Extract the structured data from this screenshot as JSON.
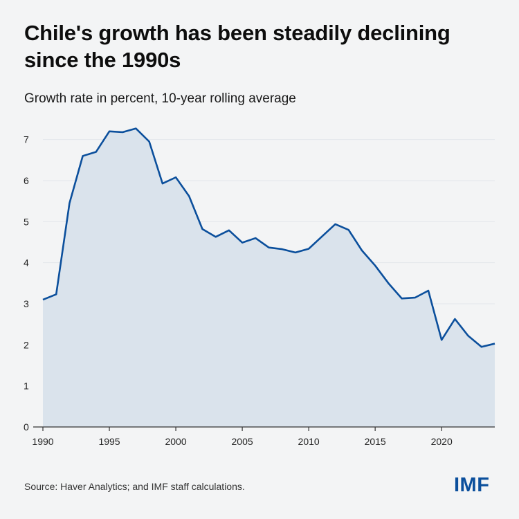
{
  "header": {
    "title": "Chile's growth has been steadily declining since the 1990s",
    "subtitle": "Growth rate in percent, 10-year rolling average"
  },
  "footer": {
    "source": "Source: Haver Analytics; and IMF staff calculations.",
    "logo_text": "IMF"
  },
  "colors": {
    "line": "#0b4f9c",
    "area": "#dae3ec",
    "grid": "#e3e6ea",
    "axis": "#333333"
  },
  "chart_data": {
    "type": "area",
    "title": "Chile's growth has been steadily declining since the 1990s",
    "subtitle": "Growth rate in percent, 10-year rolling average",
    "xlabel": "",
    "ylabel": "",
    "xlim": [
      1990,
      2024
    ],
    "ylim": [
      0,
      7.5
    ],
    "x_ticks": [
      1990,
      1995,
      2000,
      2005,
      2010,
      2015,
      2020
    ],
    "y_ticks": [
      0,
      1,
      2,
      3,
      4,
      5,
      6,
      7
    ],
    "grid": "horizontal",
    "x": [
      1990,
      1991,
      1992,
      1993,
      1994,
      1995,
      1996,
      1997,
      1998,
      1999,
      2000,
      2001,
      2002,
      2003,
      2004,
      2005,
      2006,
      2007,
      2008,
      2009,
      2010,
      2011,
      2012,
      2013,
      2014,
      2015,
      2016,
      2017,
      2018,
      2019,
      2020,
      2021,
      2022,
      2023,
      2024
    ],
    "series": [
      {
        "values": [
          3.1,
          3.23,
          5.45,
          6.6,
          6.7,
          7.2,
          7.18,
          7.27,
          6.95,
          5.93,
          6.08,
          5.62,
          4.82,
          4.63,
          4.79,
          4.49,
          4.6,
          4.37,
          4.33,
          4.25,
          4.34,
          4.64,
          4.94,
          4.8,
          4.3,
          3.93,
          3.5,
          3.13,
          3.15,
          3.32,
          2.12,
          2.63,
          2.22,
          1.95,
          2.03
        ]
      }
    ]
  }
}
